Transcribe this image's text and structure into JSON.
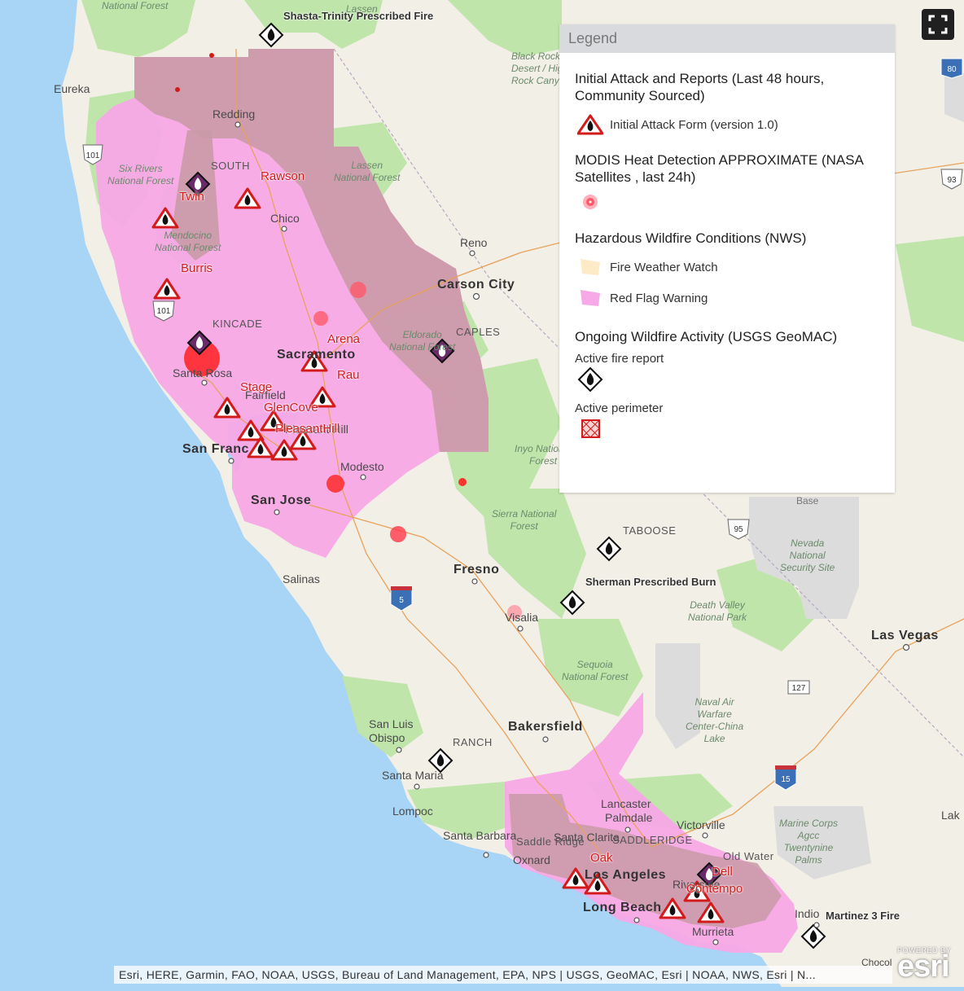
{
  "map": {
    "cities_major": [
      {
        "name": "Carson City"
      },
      {
        "name": "Sacramento"
      },
      {
        "name": "San Franc"
      },
      {
        "name": "San Jose"
      },
      {
        "name": "Fresno"
      },
      {
        "name": "Bakersfield"
      },
      {
        "name": "Las Vegas"
      },
      {
        "name": "Long Beach"
      },
      {
        "name": "Los Angeles"
      }
    ],
    "cities": [
      {
        "name": "Eureka"
      },
      {
        "name": "Redding"
      },
      {
        "name": "Chico"
      },
      {
        "name": "Reno"
      },
      {
        "name": "Santa Rosa"
      },
      {
        "name": "Fairfield"
      },
      {
        "name": "Pleasant Hill"
      },
      {
        "name": "Modesto"
      },
      {
        "name": "Salinas"
      },
      {
        "name": "Visalia"
      },
      {
        "name": "San Luis Obispo"
      },
      {
        "name": "Santa Maria"
      },
      {
        "name": "Lompoc"
      },
      {
        "name": "Santa Barbara"
      },
      {
        "name": "Oxnard"
      },
      {
        "name": "Santa Clarita"
      },
      {
        "name": "Lancaster"
      },
      {
        "name": "Palmdale"
      },
      {
        "name": "Victorville"
      },
      {
        "name": "Riverside"
      },
      {
        "name": "Murrieta"
      },
      {
        "name": "Indio"
      },
      {
        "name": "Lak"
      },
      {
        "name": "Base"
      },
      {
        "name": "Chocol"
      }
    ],
    "parks": [
      {
        "name": "National Forest"
      },
      {
        "name": "Six Rivers\nNational Forest"
      },
      {
        "name": "Mendocino\nNational Forest"
      },
      {
        "name": "Lassen\nNational Forest"
      },
      {
        "name": "Eldorado\nNational Forest"
      },
      {
        "name": "Inyo National\nForest"
      },
      {
        "name": "Sierra National\nForest"
      },
      {
        "name": "Sequoia\nNational Forest"
      },
      {
        "name": "Death Valley\nNational Park"
      },
      {
        "name": "Nevada\nNational\nSecurity Site"
      },
      {
        "name": "Naval Air\nWarfare\nCenter-China\nLake"
      },
      {
        "name": "Marine Corps\nAgcc\nTwentynine\nPalms"
      },
      {
        "name": "Black Rock\nDesert / High\nRock Canyon"
      },
      {
        "name": "Lassen"
      }
    ],
    "fire_labels": [
      {
        "name": "Rawson"
      },
      {
        "name": "Twin"
      },
      {
        "name": "Burris"
      },
      {
        "name": "Arena"
      },
      {
        "name": "Rau"
      },
      {
        "name": "Stage"
      },
      {
        "name": "GlenCove"
      },
      {
        "name": "PleasantHill"
      },
      {
        "name": "Oak"
      },
      {
        "name": "Dell"
      },
      {
        "name": "Contempo"
      }
    ],
    "geomac_labels": [
      {
        "name": "Shasta-Trinity Prescribed Fire"
      },
      {
        "name": "Sherman Prescribed Burn"
      },
      {
        "name": "Martinez 3 Fire"
      }
    ],
    "clusters": [
      {
        "name": "SOUTH"
      },
      {
        "name": "KINCADE"
      },
      {
        "name": "CAPLES"
      },
      {
        "name": "TABOOSE"
      },
      {
        "name": "RANCH"
      },
      {
        "name": "SADDLERIDGE"
      },
      {
        "name": "Old Water"
      },
      {
        "name": "Saddle Ridge"
      }
    ],
    "shields": [
      {
        "label": "101"
      },
      {
        "label": "101"
      },
      {
        "label": "80"
      },
      {
        "label": "93"
      },
      {
        "label": "95"
      },
      {
        "label": "127"
      },
      {
        "label": "5"
      },
      {
        "label": "15"
      }
    ]
  },
  "legend": {
    "title": "Legend",
    "sections": [
      {
        "title": "Initial Attack and Reports (Last 48 hours, Community Sourced)",
        "items": [
          {
            "label": "Initial Attack Form (version 1.0)",
            "icon": "initial-attack-triangle-icon"
          }
        ]
      },
      {
        "title": "MODIS Heat Detection APPROXIMATE (NASA Satellites , last 24h)",
        "items": [
          {
            "label": "",
            "icon": "heat-dot-icon"
          }
        ]
      },
      {
        "title": "Hazardous Wildfire Conditions (NWS)",
        "items": [
          {
            "label": "Fire Weather Watch",
            "icon": "fire-weather-watch-swatch",
            "color": "#fdebc8"
          },
          {
            "label": "Red Flag Warning",
            "icon": "red-flag-warning-swatch",
            "color": "#f7a8e6"
          }
        ]
      },
      {
        "title": "Ongoing Wildfire Activity (USGS GeoMAC)",
        "items": [
          {
            "label": "Active fire report",
            "icon": "active-fire-diamond-icon"
          },
          {
            "label": "Active perimeter",
            "icon": "active-perimeter-icon"
          }
        ]
      }
    ]
  },
  "attribution": "Esri, HERE, Garmin, FAO, NOAA, USGS, Bureau of Land Management, EPA, NPS | USGS, GeoMAC, Esri | NOAA, NWS, Esri | N...",
  "esri_logo": {
    "powered_by": "POWERED BY",
    "wordmark": "esri"
  },
  "colors": {
    "ocean": "#a8d4f5",
    "land": "#f2efe6",
    "forest": "#bfe5ab",
    "red_flag": "#f7a8e6",
    "red_flag_dark": "#c99aa6",
    "fire_red": "#d21c1c"
  }
}
